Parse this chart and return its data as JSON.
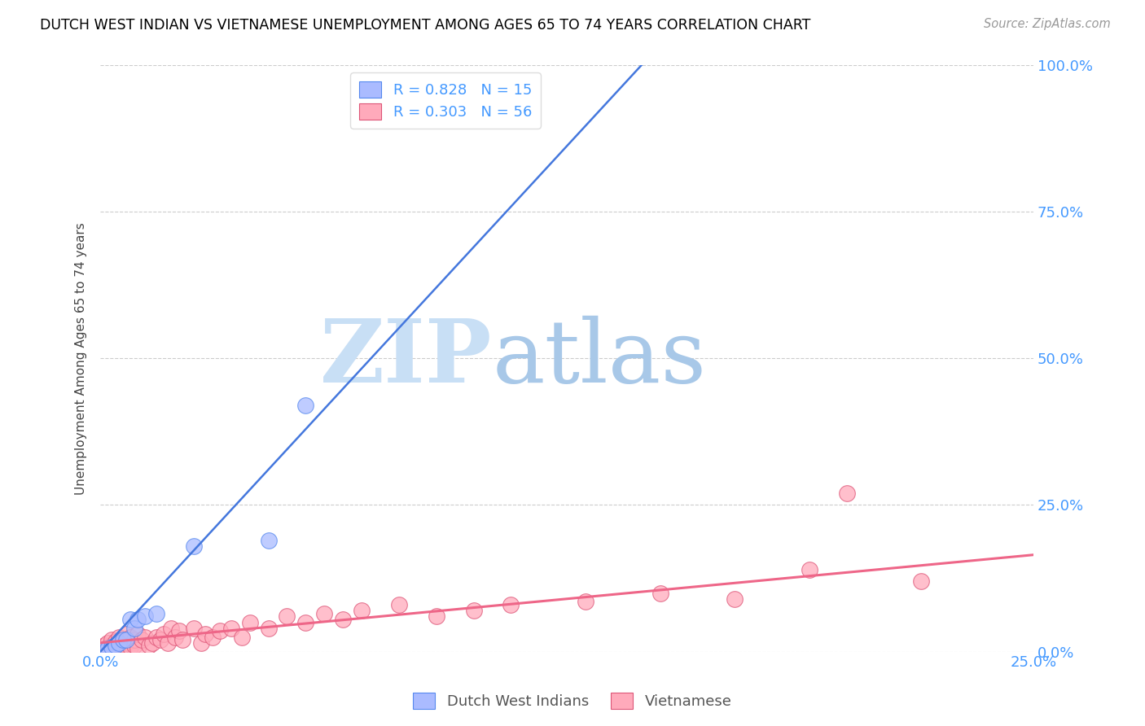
{
  "title": "DUTCH WEST INDIAN VS VIETNAMESE UNEMPLOYMENT AMONG AGES 65 TO 74 YEARS CORRELATION CHART",
  "source": "Source: ZipAtlas.com",
  "xlim": [
    0.0,
    0.25
  ],
  "ylim": [
    0.0,
    1.0
  ],
  "watermark_zip": "ZIP",
  "watermark_atlas": "atlas",
  "legend_line1_r": "R = 0.828",
  "legend_line1_n": "N = 15",
  "legend_line2_r": "R = 0.303",
  "legend_line2_n": "N = 56",
  "blue_scatter_color": "#aabbff",
  "pink_scatter_color": "#ffaabb",
  "blue_line_color": "#4477dd",
  "pink_line_color": "#ee6688",
  "blue_edge_color": "#5588ee",
  "pink_edge_color": "#dd5577",
  "dutch_west_indian_x": [
    0.001,
    0.002,
    0.003,
    0.004,
    0.005,
    0.006,
    0.007,
    0.008,
    0.009,
    0.01,
    0.012,
    0.015,
    0.025,
    0.045,
    0.055
  ],
  "dutch_west_indian_y": [
    0.003,
    0.005,
    0.008,
    0.01,
    0.015,
    0.02,
    0.02,
    0.055,
    0.04,
    0.055,
    0.06,
    0.065,
    0.18,
    0.19,
    0.42
  ],
  "vietnamese_x": [
    0.001,
    0.001,
    0.002,
    0.002,
    0.003,
    0.003,
    0.004,
    0.004,
    0.005,
    0.005,
    0.006,
    0.006,
    0.007,
    0.007,
    0.008,
    0.008,
    0.009,
    0.009,
    0.01,
    0.01,
    0.011,
    0.012,
    0.013,
    0.014,
    0.015,
    0.016,
    0.017,
    0.018,
    0.019,
    0.02,
    0.021,
    0.022,
    0.025,
    0.027,
    0.028,
    0.03,
    0.032,
    0.035,
    0.038,
    0.04,
    0.045,
    0.05,
    0.055,
    0.06,
    0.065,
    0.07,
    0.08,
    0.09,
    0.1,
    0.11,
    0.13,
    0.15,
    0.17,
    0.19,
    0.2,
    0.22
  ],
  "vietnamese_y": [
    0.005,
    0.01,
    0.008,
    0.015,
    0.01,
    0.02,
    0.005,
    0.018,
    0.012,
    0.025,
    0.01,
    0.02,
    0.015,
    0.03,
    0.008,
    0.025,
    0.01,
    0.02,
    0.005,
    0.03,
    0.02,
    0.025,
    0.01,
    0.015,
    0.025,
    0.02,
    0.03,
    0.015,
    0.04,
    0.025,
    0.035,
    0.02,
    0.04,
    0.015,
    0.03,
    0.025,
    0.035,
    0.04,
    0.025,
    0.05,
    0.04,
    0.06,
    0.05,
    0.065,
    0.055,
    0.07,
    0.08,
    0.06,
    0.07,
    0.08,
    0.085,
    0.1,
    0.09,
    0.14,
    0.27,
    0.12
  ],
  "ylabel": "Unemployment Among Ages 65 to 74 years",
  "dwi_regline_x": [
    0.0,
    0.145
  ],
  "dwi_regline_y": [
    0.0,
    1.0
  ],
  "viet_regline_x": [
    0.0,
    0.25
  ],
  "viet_regline_y": [
    0.015,
    0.165
  ]
}
